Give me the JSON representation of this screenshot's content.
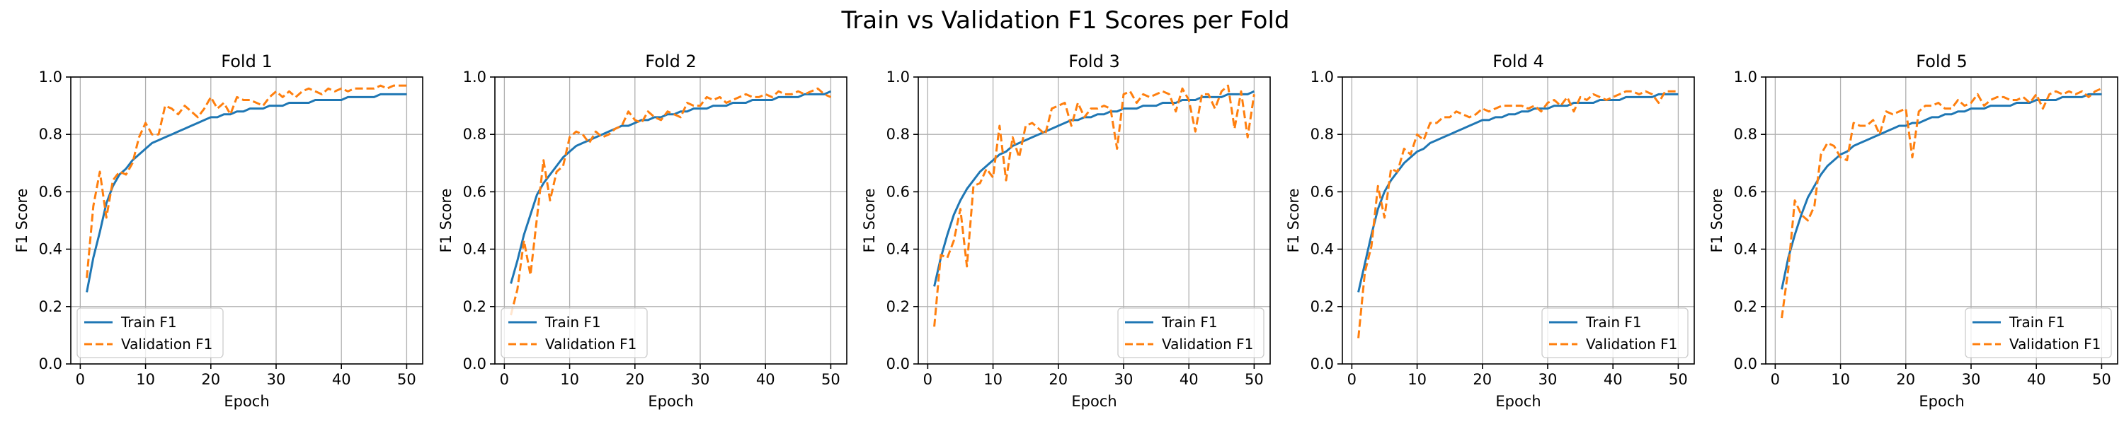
{
  "figure": {
    "title": "Train vs Validation F1 Scores per Fold",
    "train_color": "#1f77b4",
    "val_color": "#ff7f0e"
  },
  "chart_data": [
    {
      "type": "line",
      "title": "Fold 1",
      "xlabel": "Epoch",
      "ylabel": "F1 Score",
      "xlim": [
        -1.45,
        52.45
      ],
      "ylim": [
        0.0,
        1.0
      ],
      "xticks": [
        0,
        10,
        20,
        30,
        40,
        50
      ],
      "yticks": [
        0.0,
        0.2,
        0.4,
        0.6,
        0.8,
        1.0
      ],
      "grid": true,
      "legend_position": "lower-left",
      "series": [
        {
          "name": "Train F1",
          "style": "solid",
          "values": [
            0.25,
            0.37,
            0.46,
            0.56,
            0.62,
            0.66,
            0.68,
            0.71,
            0.73,
            0.75,
            0.77,
            0.78,
            0.79,
            0.8,
            0.81,
            0.82,
            0.83,
            0.84,
            0.85,
            0.86,
            0.86,
            0.87,
            0.87,
            0.88,
            0.88,
            0.89,
            0.89,
            0.89,
            0.9,
            0.9,
            0.9,
            0.91,
            0.91,
            0.91,
            0.91,
            0.92,
            0.92,
            0.92,
            0.92,
            0.92,
            0.93,
            0.93,
            0.93,
            0.93,
            0.93,
            0.94,
            0.94,
            0.94,
            0.94,
            0.94
          ]
        },
        {
          "name": "Validation F1",
          "style": "dashed",
          "values": [
            0.3,
            0.55,
            0.67,
            0.51,
            0.64,
            0.67,
            0.66,
            0.7,
            0.79,
            0.84,
            0.8,
            0.8,
            0.9,
            0.89,
            0.87,
            0.9,
            0.88,
            0.86,
            0.89,
            0.93,
            0.89,
            0.91,
            0.87,
            0.93,
            0.92,
            0.92,
            0.91,
            0.9,
            0.93,
            0.95,
            0.93,
            0.95,
            0.93,
            0.95,
            0.96,
            0.95,
            0.94,
            0.96,
            0.95,
            0.96,
            0.95,
            0.96,
            0.96,
            0.96,
            0.96,
            0.97,
            0.96,
            0.97,
            0.97,
            0.97
          ]
        }
      ]
    },
    {
      "type": "line",
      "title": "Fold 2",
      "xlabel": "Epoch",
      "ylabel": "F1 Score",
      "xlim": [
        -1.45,
        52.45
      ],
      "ylim": [
        0.0,
        1.0
      ],
      "xticks": [
        0,
        10,
        20,
        30,
        40,
        50
      ],
      "yticks": [
        0.0,
        0.2,
        0.4,
        0.6,
        0.8,
        1.0
      ],
      "grid": true,
      "legend_position": "lower-left",
      "series": [
        {
          "name": "Train F1",
          "style": "solid",
          "values": [
            0.28,
            0.36,
            0.45,
            0.52,
            0.59,
            0.63,
            0.66,
            0.69,
            0.72,
            0.74,
            0.76,
            0.77,
            0.78,
            0.79,
            0.8,
            0.81,
            0.82,
            0.83,
            0.83,
            0.84,
            0.85,
            0.85,
            0.86,
            0.86,
            0.87,
            0.87,
            0.88,
            0.88,
            0.89,
            0.89,
            0.89,
            0.9,
            0.9,
            0.9,
            0.91,
            0.91,
            0.91,
            0.92,
            0.92,
            0.92,
            0.92,
            0.93,
            0.93,
            0.93,
            0.93,
            0.94,
            0.94,
            0.94,
            0.94,
            0.95
          ]
        },
        {
          "name": "Validation F1",
          "style": "dashed",
          "values": [
            0.17,
            0.26,
            0.43,
            0.31,
            0.51,
            0.71,
            0.57,
            0.67,
            0.69,
            0.79,
            0.81,
            0.8,
            0.77,
            0.81,
            0.79,
            0.8,
            0.82,
            0.83,
            0.88,
            0.85,
            0.84,
            0.88,
            0.86,
            0.85,
            0.88,
            0.87,
            0.86,
            0.91,
            0.9,
            0.9,
            0.93,
            0.92,
            0.93,
            0.91,
            0.92,
            0.93,
            0.94,
            0.93,
            0.93,
            0.94,
            0.93,
            0.95,
            0.94,
            0.94,
            0.95,
            0.94,
            0.95,
            0.96,
            0.94,
            0.93
          ]
        }
      ]
    },
    {
      "type": "line",
      "title": "Fold 3",
      "xlabel": "Epoch",
      "ylabel": "F1 Score",
      "xlim": [
        -1.45,
        52.45
      ],
      "ylim": [
        0.0,
        1.0
      ],
      "xticks": [
        0,
        10,
        20,
        30,
        40,
        50
      ],
      "yticks": [
        0.0,
        0.2,
        0.4,
        0.6,
        0.8,
        1.0
      ],
      "grid": true,
      "legend_position": "lower-right",
      "series": [
        {
          "name": "Train F1",
          "style": "solid",
          "values": [
            0.27,
            0.37,
            0.45,
            0.52,
            0.57,
            0.61,
            0.64,
            0.67,
            0.69,
            0.71,
            0.73,
            0.74,
            0.76,
            0.77,
            0.78,
            0.79,
            0.8,
            0.81,
            0.82,
            0.83,
            0.84,
            0.85,
            0.85,
            0.86,
            0.86,
            0.87,
            0.87,
            0.88,
            0.88,
            0.89,
            0.89,
            0.89,
            0.9,
            0.9,
            0.9,
            0.91,
            0.91,
            0.91,
            0.92,
            0.92,
            0.92,
            0.93,
            0.93,
            0.93,
            0.93,
            0.94,
            0.94,
            0.94,
            0.94,
            0.95
          ]
        },
        {
          "name": "Validation F1",
          "style": "dashed",
          "values": [
            0.13,
            0.38,
            0.37,
            0.43,
            0.54,
            0.34,
            0.62,
            0.63,
            0.68,
            0.65,
            0.83,
            0.64,
            0.79,
            0.72,
            0.83,
            0.84,
            0.82,
            0.8,
            0.89,
            0.9,
            0.91,
            0.83,
            0.91,
            0.86,
            0.89,
            0.89,
            0.9,
            0.89,
            0.75,
            0.94,
            0.95,
            0.91,
            0.94,
            0.93,
            0.94,
            0.95,
            0.94,
            0.88,
            0.96,
            0.92,
            0.81,
            0.94,
            0.94,
            0.89,
            0.95,
            0.97,
            0.82,
            0.95,
            0.79,
            0.94
          ]
        }
      ]
    },
    {
      "type": "line",
      "title": "Fold 4",
      "xlabel": "Epoch",
      "ylabel": "F1 Score",
      "xlim": [
        -1.45,
        52.45
      ],
      "ylim": [
        0.0,
        1.0
      ],
      "xticks": [
        0,
        10,
        20,
        30,
        40,
        50
      ],
      "yticks": [
        0.0,
        0.2,
        0.4,
        0.6,
        0.8,
        1.0
      ],
      "grid": true,
      "legend_position": "lower-right",
      "series": [
        {
          "name": "Train F1",
          "style": "solid",
          "values": [
            0.25,
            0.35,
            0.45,
            0.54,
            0.6,
            0.64,
            0.67,
            0.7,
            0.72,
            0.74,
            0.75,
            0.77,
            0.78,
            0.79,
            0.8,
            0.81,
            0.82,
            0.83,
            0.84,
            0.85,
            0.85,
            0.86,
            0.86,
            0.87,
            0.87,
            0.88,
            0.88,
            0.89,
            0.89,
            0.89,
            0.9,
            0.9,
            0.9,
            0.91,
            0.91,
            0.91,
            0.91,
            0.92,
            0.92,
            0.92,
            0.92,
            0.93,
            0.93,
            0.93,
            0.93,
            0.93,
            0.94,
            0.94,
            0.94,
            0.94
          ]
        },
        {
          "name": "Validation F1",
          "style": "dashed",
          "values": [
            0.09,
            0.32,
            0.41,
            0.62,
            0.51,
            0.68,
            0.67,
            0.75,
            0.73,
            0.8,
            0.78,
            0.84,
            0.84,
            0.86,
            0.86,
            0.88,
            0.87,
            0.86,
            0.87,
            0.89,
            0.88,
            0.89,
            0.9,
            0.9,
            0.9,
            0.9,
            0.89,
            0.9,
            0.88,
            0.91,
            0.92,
            0.9,
            0.93,
            0.88,
            0.93,
            0.92,
            0.94,
            0.93,
            0.92,
            0.93,
            0.94,
            0.95,
            0.95,
            0.94,
            0.95,
            0.94,
            0.91,
            0.95,
            0.95,
            0.95
          ]
        }
      ]
    },
    {
      "type": "line",
      "title": "Fold 5",
      "xlabel": "Epoch",
      "ylabel": "F1 Score",
      "xlim": [
        -1.45,
        52.45
      ],
      "ylim": [
        0.0,
        1.0
      ],
      "xticks": [
        0,
        10,
        20,
        30,
        40,
        50
      ],
      "yticks": [
        0.0,
        0.2,
        0.4,
        0.6,
        0.8,
        1.0
      ],
      "grid": true,
      "legend_position": "lower-right",
      "series": [
        {
          "name": "Train F1",
          "style": "solid",
          "values": [
            0.26,
            0.37,
            0.45,
            0.52,
            0.58,
            0.62,
            0.66,
            0.69,
            0.71,
            0.73,
            0.74,
            0.76,
            0.77,
            0.78,
            0.79,
            0.8,
            0.81,
            0.82,
            0.83,
            0.83,
            0.84,
            0.84,
            0.85,
            0.86,
            0.86,
            0.87,
            0.87,
            0.88,
            0.88,
            0.89,
            0.89,
            0.89,
            0.9,
            0.9,
            0.9,
            0.9,
            0.91,
            0.91,
            0.91,
            0.92,
            0.92,
            0.92,
            0.92,
            0.93,
            0.93,
            0.93,
            0.93,
            0.94,
            0.94,
            0.94
          ]
        },
        {
          "name": "Validation F1",
          "style": "dashed",
          "values": [
            0.16,
            0.33,
            0.57,
            0.52,
            0.5,
            0.55,
            0.73,
            0.77,
            0.76,
            0.72,
            0.71,
            0.84,
            0.83,
            0.83,
            0.85,
            0.8,
            0.88,
            0.87,
            0.88,
            0.89,
            0.72,
            0.88,
            0.9,
            0.9,
            0.91,
            0.89,
            0.89,
            0.92,
            0.9,
            0.91,
            0.94,
            0.9,
            0.92,
            0.93,
            0.93,
            0.92,
            0.92,
            0.93,
            0.91,
            0.94,
            0.89,
            0.94,
            0.95,
            0.94,
            0.95,
            0.94,
            0.95,
            0.93,
            0.95,
            0.96
          ]
        }
      ]
    }
  ]
}
